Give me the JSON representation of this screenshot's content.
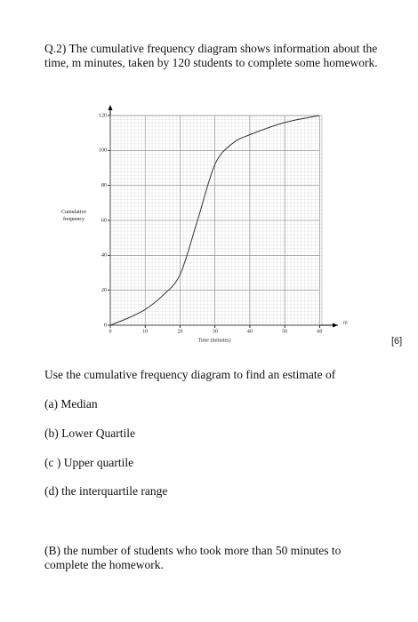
{
  "question": "Q.2) The cumulative frequency diagram shows information about the time, m minutes, taken by 120 students to complete some homework.",
  "marks": "[6]",
  "chart_data": {
    "type": "line",
    "x": [
      0,
      5,
      10,
      15,
      20,
      25,
      30,
      35,
      40,
      50,
      60
    ],
    "values": [
      0,
      4,
      9,
      17,
      29,
      60,
      92,
      104,
      109,
      116,
      120
    ],
    "color": "#333333",
    "xlim": [
      0,
      60
    ],
    "ylim": [
      0,
      120
    ],
    "xticks": [
      0,
      10,
      20,
      30,
      40,
      50,
      60
    ],
    "yticks": [
      0,
      20,
      40,
      60,
      80,
      100,
      120
    ],
    "x_label": "Time (minutes)",
    "y_label": "Cumulative frequency",
    "x_axis_symbol": "m",
    "grid": true
  },
  "prompt": "Use the cumulative frequency diagram to find an estimate of",
  "parts": [
    "(a) Median",
    "(b) Lower Quartile",
    "(c ) Upper quartile",
    "(d) the interquartile range"
  ],
  "part_B": "(B) the number of students who took more than 50 minutes to complete the homework."
}
